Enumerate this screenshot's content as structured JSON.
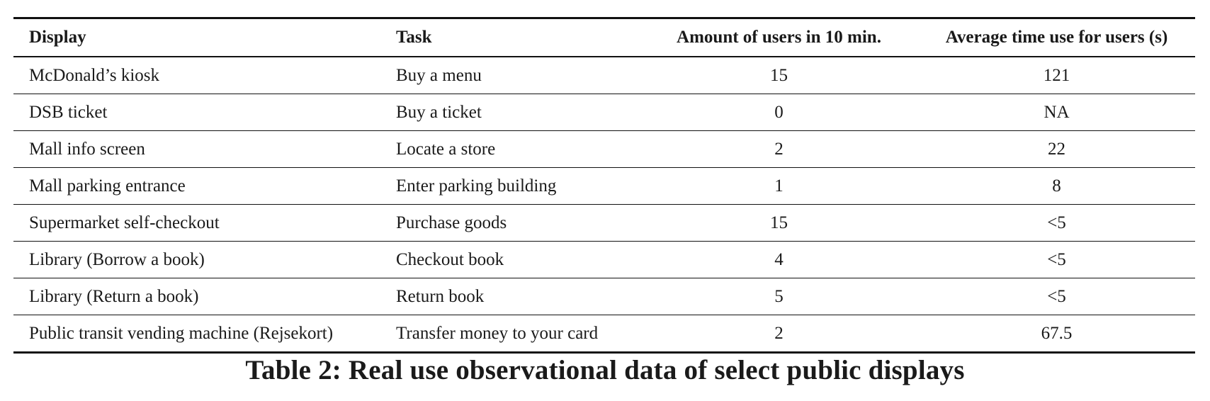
{
  "table": {
    "headers": [
      "Display",
      "Task",
      "Amount of users in 10 min.",
      "Average time use for users (s)"
    ],
    "rows": [
      [
        "McDonald’s kiosk",
        "Buy a menu",
        "15",
        "121"
      ],
      [
        "DSB ticket",
        "Buy a ticket",
        "0",
        "NA"
      ],
      [
        "Mall info screen",
        "Locate a store",
        "2",
        "22"
      ],
      [
        "Mall parking entrance",
        "Enter parking building",
        "1",
        "8"
      ],
      [
        "Supermarket self-checkout",
        "Purchase goods",
        "15",
        "<5"
      ],
      [
        "Library (Borrow a book)",
        "Checkout book",
        "4",
        "<5"
      ],
      [
        "Library (Return a book)",
        "Return book",
        "5",
        "<5"
      ],
      [
        "Public transit vending machine (Rejsekort)",
        "Transfer money to your card",
        "2",
        "67.5"
      ]
    ]
  },
  "caption": "Table 2: Real use observational data of select public displays"
}
